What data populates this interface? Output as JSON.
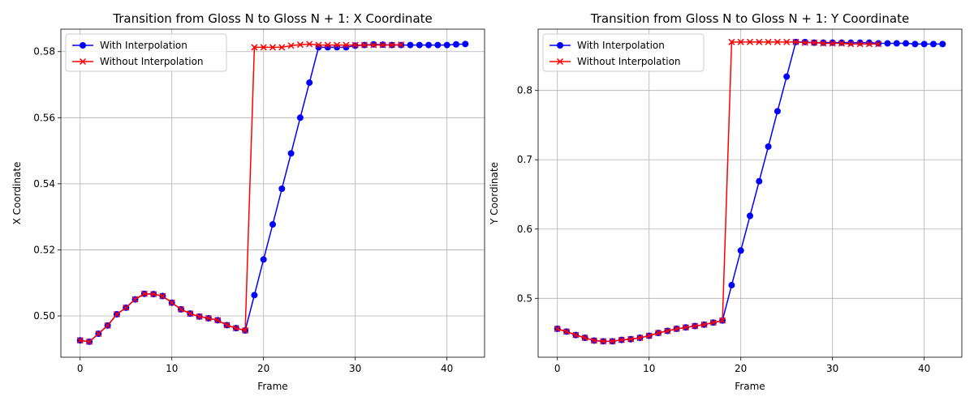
{
  "chart_data": [
    {
      "type": "line",
      "title": "Transition from Gloss N to Gloss N + 1: X Coordinate",
      "xlabel": "Frame",
      "ylabel": "X Coordinate",
      "xlim": [
        -2.1,
        44.1
      ],
      "ylim": [
        0.4875,
        0.5868
      ],
      "xticks": [
        0,
        10,
        20,
        30,
        40
      ],
      "yticks": [
        0.5,
        0.52,
        0.54,
        0.56,
        0.58
      ],
      "ytick_labels": [
        "0.50",
        "0.52",
        "0.54",
        "0.56",
        "0.58"
      ],
      "grid": true,
      "legend": "top-left",
      "series": [
        {
          "name": "With Interpolation",
          "color": "#0000ff",
          "marker": "circle",
          "x": [
            0,
            1,
            2,
            3,
            4,
            5,
            6,
            7,
            8,
            9,
            10,
            11,
            12,
            13,
            14,
            15,
            16,
            17,
            18,
            19,
            20,
            21,
            22,
            23,
            24,
            25,
            26,
            27,
            28,
            29,
            30,
            31,
            32,
            33,
            34,
            35,
            36,
            37,
            38,
            39,
            40,
            41,
            42
          ],
          "values": [
            0.4926,
            0.4922,
            0.4946,
            0.4971,
            0.5005,
            0.5025,
            0.505,
            0.5067,
            0.5066,
            0.506,
            0.504,
            0.502,
            0.5007,
            0.4998,
            0.4993,
            0.4987,
            0.4972,
            0.4963,
            0.4956,
            0.5063,
            0.5171,
            0.5277,
            0.5385,
            0.5492,
            0.56,
            0.5706,
            0.5813,
            0.5813,
            0.5813,
            0.5813,
            0.5818,
            0.582,
            0.5822,
            0.5821,
            0.582,
            0.582,
            0.582,
            0.582,
            0.582,
            0.582,
            0.582,
            0.5822,
            0.5823
          ]
        },
        {
          "name": "Without Interpolation",
          "color": "#ff0000",
          "marker": "x",
          "x": [
            0,
            1,
            2,
            3,
            4,
            5,
            6,
            7,
            8,
            9,
            10,
            11,
            12,
            13,
            14,
            15,
            16,
            17,
            18,
            19,
            20,
            21,
            22,
            23,
            24,
            25,
            26,
            27,
            28,
            29,
            30,
            31,
            32,
            33,
            34,
            35
          ],
          "values": [
            0.4926,
            0.4922,
            0.4946,
            0.4971,
            0.5005,
            0.5025,
            0.505,
            0.5067,
            0.5066,
            0.506,
            0.504,
            0.502,
            0.5007,
            0.4998,
            0.4993,
            0.4987,
            0.4972,
            0.4963,
            0.4956,
            0.5813,
            0.5813,
            0.5813,
            0.5813,
            0.5818,
            0.5821,
            0.5823,
            0.582,
            0.582,
            0.582,
            0.582,
            0.582,
            0.582,
            0.582,
            0.582,
            0.582,
            0.5821
          ]
        }
      ]
    },
    {
      "type": "line",
      "title": "Transition from Gloss N to Gloss N + 1: Y Coordinate",
      "xlabel": "Frame",
      "ylabel": "Y Coordinate",
      "xlim": [
        -2.1,
        44.1
      ],
      "ylim": [
        0.415,
        0.8885
      ],
      "xticks": [
        0,
        10,
        20,
        30,
        40
      ],
      "yticks": [
        0.5,
        0.6,
        0.7,
        0.8
      ],
      "ytick_labels": [
        "0.5",
        "0.6",
        "0.7",
        "0.8"
      ],
      "grid": true,
      "legend": "top-left",
      "series": [
        {
          "name": "With Interpolation",
          "color": "#0000ff",
          "marker": "circle",
          "x": [
            0,
            1,
            2,
            3,
            4,
            5,
            6,
            7,
            8,
            9,
            10,
            11,
            12,
            13,
            14,
            15,
            16,
            17,
            18,
            19,
            20,
            21,
            22,
            23,
            24,
            25,
            26,
            27,
            28,
            29,
            30,
            31,
            32,
            33,
            34,
            35,
            36,
            37,
            38,
            39,
            40,
            41,
            42
          ],
          "values": [
            0.456,
            0.452,
            0.447,
            0.443,
            0.439,
            0.438,
            0.438,
            0.44,
            0.441,
            0.443,
            0.446,
            0.45,
            0.453,
            0.456,
            0.458,
            0.46,
            0.462,
            0.465,
            0.468,
            0.519,
            0.569,
            0.619,
            0.669,
            0.719,
            0.77,
            0.82,
            0.87,
            0.87,
            0.869,
            0.869,
            0.869,
            0.869,
            0.869,
            0.869,
            0.869,
            0.868,
            0.868,
            0.868,
            0.868,
            0.867,
            0.867,
            0.867,
            0.867
          ]
        },
        {
          "name": "Without Interpolation",
          "color": "#ff0000",
          "marker": "x",
          "x": [
            0,
            1,
            2,
            3,
            4,
            5,
            6,
            7,
            8,
            9,
            10,
            11,
            12,
            13,
            14,
            15,
            16,
            17,
            18,
            19,
            20,
            21,
            22,
            23,
            24,
            25,
            26,
            27,
            28,
            29,
            30,
            31,
            32,
            33,
            34,
            35
          ],
          "values": [
            0.456,
            0.452,
            0.447,
            0.443,
            0.439,
            0.438,
            0.438,
            0.44,
            0.441,
            0.443,
            0.446,
            0.45,
            0.453,
            0.456,
            0.458,
            0.46,
            0.462,
            0.465,
            0.468,
            0.87,
            0.87,
            0.87,
            0.87,
            0.87,
            0.87,
            0.87,
            0.87,
            0.869,
            0.869,
            0.868,
            0.868,
            0.868,
            0.867,
            0.867,
            0.867,
            0.867
          ]
        }
      ]
    }
  ]
}
